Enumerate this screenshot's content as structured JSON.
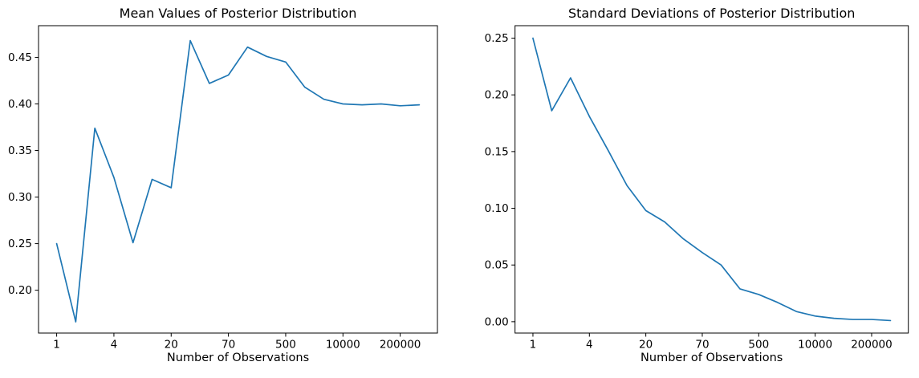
{
  "figure": {
    "background_color": "#ffffff",
    "line_color": "#1f77b4",
    "axis_color": "#000000",
    "text_color": "#000000"
  },
  "chart_data": [
    {
      "id": "posterior-means",
      "type": "line",
      "title": "Mean Values of Posterior Distribution",
      "xlabel": "Number of Observations",
      "ylabel": "",
      "grid": false,
      "legend": null,
      "x_axis": {
        "kind": "categorical-index",
        "tick_indices": [
          0,
          3,
          6,
          9,
          12,
          15,
          18
        ],
        "tick_labels": [
          "1",
          "4",
          "20",
          "70",
          "500",
          "10000",
          "200000"
        ],
        "xlim_index": [
          -0.95,
          19.95
        ]
      },
      "y_axis": {
        "tick_values": [
          0.2,
          0.25,
          0.3,
          0.35,
          0.4,
          0.45
        ],
        "tick_labels": [
          "0.20",
          "0.25",
          "0.30",
          "0.35",
          "0.40",
          "0.45"
        ],
        "ylim": [
          0.154,
          0.484
        ]
      },
      "series": [
        {
          "name": "posterior-mean",
          "x_index": [
            0,
            1,
            2,
            3,
            4,
            5,
            6,
            7,
            8,
            9,
            10,
            11,
            12,
            13,
            14,
            15,
            16,
            17,
            18,
            19
          ],
          "values": [
            0.25,
            0.166,
            0.374,
            0.321,
            0.251,
            0.319,
            0.31,
            0.468,
            0.422,
            0.431,
            0.461,
            0.451,
            0.445,
            0.418,
            0.405,
            0.4,
            0.399,
            0.4,
            0.398,
            0.399
          ]
        }
      ]
    },
    {
      "id": "posterior-stds",
      "type": "line",
      "title": "Standard Deviations of Posterior Distribution",
      "xlabel": "Number of Observations",
      "ylabel": "",
      "grid": false,
      "legend": null,
      "x_axis": {
        "kind": "categorical-index",
        "tick_indices": [
          0,
          3,
          6,
          9,
          12,
          15,
          18
        ],
        "tick_labels": [
          "1",
          "4",
          "20",
          "70",
          "500",
          "10000",
          "200000"
        ],
        "xlim_index": [
          -0.95,
          19.95
        ]
      },
      "y_axis": {
        "tick_values": [
          0.0,
          0.05,
          0.1,
          0.15,
          0.2,
          0.25
        ],
        "tick_labels": [
          "0.00",
          "0.05",
          "0.10",
          "0.15",
          "0.20",
          "0.25"
        ],
        "ylim": [
          -0.01,
          0.261
        ]
      },
      "series": [
        {
          "name": "posterior-std",
          "x_index": [
            0,
            1,
            2,
            3,
            4,
            5,
            6,
            7,
            8,
            9,
            10,
            11,
            12,
            13,
            14,
            15,
            16,
            17,
            18,
            19
          ],
          "values": [
            0.25,
            0.186,
            0.215,
            0.181,
            0.151,
            0.12,
            0.098,
            0.088,
            0.073,
            0.061,
            0.05,
            0.029,
            0.024,
            0.017,
            0.009,
            0.005,
            0.003,
            0.002,
            0.002,
            0.001
          ]
        }
      ]
    }
  ]
}
